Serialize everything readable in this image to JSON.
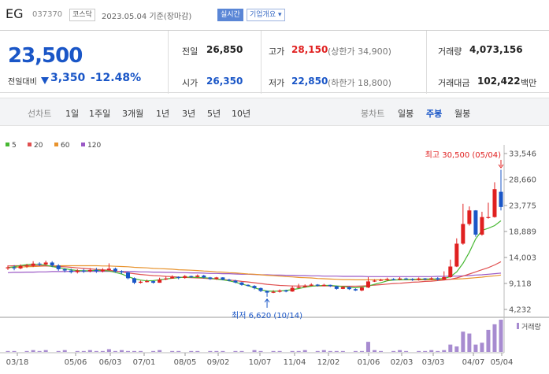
{
  "header": {
    "name": "EG",
    "code": "037370",
    "market_badge": "코스닥",
    "date_text": "2023.05.04  기준(장마감)",
    "realtime_badge": "실시간",
    "company_info_button": "기업개요 ▾"
  },
  "price": {
    "current": "23,500",
    "change_label": "전일대비",
    "change_value": "3,350",
    "change_pct": "-12.48%",
    "direction": "down"
  },
  "summary": {
    "prev_close_label": "전일",
    "prev_close": "26,850",
    "open_label": "시가",
    "open": "26,350",
    "high_label": "고가",
    "high": "28,150",
    "upper_limit": "(상한가 34,900)",
    "low_label": "저가",
    "low": "22,850",
    "lower_limit": "(하한가 18,800)",
    "volume_label": "거래량",
    "volume": "4,073,156",
    "amount_label": "거래대금",
    "amount": "102,422",
    "amount_unit": "백만"
  },
  "toolbar": {
    "line_chart_label": "선차트",
    "periods": [
      "1일",
      "1주일",
      "3개월",
      "1년",
      "3년",
      "5년",
      "10년"
    ],
    "candle_label": "봉차트",
    "candle_periods": [
      "일봉",
      "주봉",
      "월봉"
    ],
    "selected_candle": "주봉"
  },
  "colors": {
    "up": "#e02020",
    "down": "#1a56c7",
    "ma5": "#47b832",
    "ma20": "#e05050",
    "ma60": "#e8932d",
    "ma120": "#9b59c6",
    "volume": "#a78bd0"
  },
  "chart_data": {
    "type": "candlestick",
    "interval": "weekly",
    "legend": [
      {
        "name": "5",
        "color": "#47b832"
      },
      {
        "name": "20",
        "color": "#e05050"
      },
      {
        "name": "60",
        "color": "#e8932d"
      },
      {
        "name": "120",
        "color": "#9b59c6"
      }
    ],
    "y_ticks": [
      "33,546",
      "28,660",
      "23,775",
      "18,889",
      "14,003",
      "9,118",
      "4,232"
    ],
    "ylim": [
      4232,
      33546
    ],
    "x_ticks": [
      "03/18",
      "05/06",
      "06/03",
      "07/01",
      "08/05",
      "09/02",
      "10/07",
      "11/04",
      "12/02",
      "01/06",
      "02/03",
      "03/03",
      "04/07",
      "05/04"
    ],
    "high_annotation": "최고 30,500 (05/04)",
    "low_annotation": "최저 6,620 (10/14)",
    "volume_label": "거래량",
    "candles": [
      [
        11950,
        12150,
        12500,
        11650
      ],
      [
        12150,
        11950,
        12550,
        11600
      ],
      [
        11950,
        12400,
        12700,
        11800
      ],
      [
        12400,
        12500,
        12800,
        12050
      ],
      [
        12500,
        12850,
        13300,
        12200
      ],
      [
        12850,
        12700,
        13100,
        12400
      ],
      [
        12700,
        13050,
        13400,
        12500
      ],
      [
        13050,
        12500,
        13300,
        12200
      ],
      [
        12500,
        11800,
        12750,
        11500
      ],
      [
        11800,
        11550,
        12000,
        11200
      ],
      [
        11550,
        11250,
        11900,
        11000
      ],
      [
        11250,
        11550,
        11800,
        11000
      ],
      [
        11550,
        11400,
        11850,
        11100
      ],
      [
        11400,
        11650,
        12000,
        11200
      ],
      [
        11650,
        11400,
        12050,
        11100
      ],
      [
        11400,
        11650,
        12000,
        11200
      ],
      [
        11650,
        11900,
        12900,
        11500
      ],
      [
        11900,
        11400,
        12100,
        11150
      ],
      [
        11400,
        11200,
        11600,
        10900
      ],
      [
        11200,
        10100,
        11300,
        9900
      ],
      [
        10100,
        9250,
        10250,
        9000
      ],
      [
        9250,
        9450,
        9650,
        9100
      ],
      [
        9450,
        9550,
        9850,
        9300
      ],
      [
        9550,
        9250,
        9650,
        9100
      ],
      [
        9250,
        9850,
        10200,
        9250
      ],
      [
        9850,
        10050,
        10450,
        9750
      ],
      [
        10050,
        10350,
        10650,
        10000
      ],
      [
        10350,
        10150,
        10450,
        9900
      ],
      [
        10150,
        10500,
        10700,
        10000
      ],
      [
        10500,
        10350,
        10600,
        10150
      ],
      [
        10350,
        10600,
        10800,
        10200
      ],
      [
        10600,
        10250,
        10750,
        10050
      ],
      [
        10250,
        9950,
        10350,
        9800
      ],
      [
        9950,
        10250,
        10350,
        9800
      ],
      [
        10250,
        9850,
        10300,
        9700
      ],
      [
        9850,
        9650,
        10000,
        9500
      ],
      [
        9650,
        9300,
        9800,
        9150
      ],
      [
        9300,
        8850,
        9400,
        8700
      ],
      [
        8850,
        8650,
        8950,
        8550
      ],
      [
        8650,
        8250,
        8800,
        8000
      ],
      [
        8250,
        7700,
        8350,
        7500
      ],
      [
        7700,
        7400,
        7800,
        6620
      ],
      [
        7400,
        7550,
        7850,
        7300
      ],
      [
        7550,
        7800,
        8000,
        7400
      ],
      [
        7800,
        7600,
        7950,
        7450
      ],
      [
        7600,
        8300,
        8700,
        7550
      ],
      [
        8300,
        8450,
        9050,
        8200
      ],
      [
        8450,
        8700,
        8950,
        8350
      ],
      [
        8700,
        8900,
        9150,
        8600
      ],
      [
        8900,
        8700,
        9000,
        8550
      ],
      [
        8700,
        8850,
        9050,
        8600
      ],
      [
        8850,
        8600,
        8900,
        8450
      ],
      [
        8600,
        8100,
        8700,
        7950
      ],
      [
        8100,
        8450,
        8600,
        8050
      ],
      [
        8450,
        8050,
        8550,
        7900
      ],
      [
        8050,
        7800,
        8200,
        7700
      ],
      [
        7800,
        8350,
        8500,
        7650
      ],
      [
        8350,
        9500,
        10300,
        8250
      ],
      [
        9500,
        9650,
        9900,
        9400
      ],
      [
        9650,
        9800,
        10000,
        9550
      ],
      [
        9800,
        9950,
        10200,
        9600
      ],
      [
        9950,
        9850,
        10100,
        9700
      ],
      [
        9850,
        10050,
        10300,
        9700
      ],
      [
        10050,
        9950,
        10200,
        9800
      ],
      [
        9950,
        9800,
        10100,
        9600
      ],
      [
        9800,
        10050,
        10250,
        9650
      ],
      [
        10050,
        9900,
        10150,
        9700
      ],
      [
        9900,
        10100,
        10300,
        9750
      ],
      [
        10100,
        9850,
        10300,
        9650
      ],
      [
        9850,
        10300,
        11400,
        9800
      ],
      [
        10300,
        12300,
        13600,
        10200
      ],
      [
        12300,
        16600,
        17600,
        12200
      ],
      [
        16600,
        20300,
        24100,
        16400
      ],
      [
        20300,
        22850,
        23600,
        20000
      ],
      [
        22850,
        18300,
        22900,
        17900
      ],
      [
        18300,
        21600,
        22600,
        18100
      ],
      [
        21600,
        21600,
        24300,
        21300
      ],
      [
        21600,
        26850,
        28150,
        21500
      ],
      [
        26350,
        23500,
        30500,
        22850
      ]
    ],
    "ma5": [
      12100,
      12250,
      12500,
      12650,
      12750,
      12700,
      12550,
      12300,
      12100,
      11900,
      11700,
      11550,
      11500,
      11500,
      11600,
      11550,
      11450,
      11200,
      10900,
      10400,
      10000,
      9750,
      9600,
      9650,
      9800,
      9950,
      10100,
      10200,
      10300,
      10300,
      10250,
      10200,
      10100,
      9950,
      9800,
      9600,
      9350,
      9000,
      8700,
      8300,
      7950,
      7700,
      7650,
      7700,
      7800,
      7950,
      8150,
      8400,
      8600,
      8700,
      8750,
      8750,
      8650,
      8550,
      8400,
      8300,
      8450,
      8650,
      8950,
      9250,
      9600,
      9750,
      9800,
      9850,
      9900,
      9900,
      9950,
      9950,
      9950,
      10050,
      10400,
      11300,
      12900,
      15000,
      17500,
      19100,
      19500,
      20000,
      20900
    ],
    "ma20": [
      12400,
      12450,
      12450,
      12450,
      12450,
      12450,
      12400,
      12350,
      12300,
      12250,
      12150,
      12050,
      11950,
      11850,
      11750,
      11700,
      11600,
      11450,
      11300,
      11100,
      10950,
      10800,
      10700,
      10600,
      10550,
      10450,
      10400,
      10300,
      10250,
      10200,
      10150,
      10100,
      10000,
      9950,
      9850,
      9750,
      9650,
      9500,
      9400,
      9250,
      9100,
      8950,
      8850,
      8750,
      8700,
      8650,
      8650,
      8650,
      8650,
      8650,
      8650,
      8650,
      8600,
      8600,
      8600,
      8600,
      8650,
      8700,
      8800,
      8900,
      9000,
      9100,
      9150,
      9250,
      9350,
      9400,
      9500,
      9550,
      9650,
      9750,
      9900,
      10150,
      10500,
      10900,
      11300,
      11700,
      12100,
      12600,
      13200
    ],
    "ma60": [
      12100,
      12150,
      12200,
      12250,
      12300,
      12350,
      12400,
      12400,
      12450,
      12450,
      12450,
      12450,
      12450,
      12450,
      12450,
      12400,
      12400,
      12350,
      12300,
      12250,
      12150,
      12100,
      12050,
      11950,
      11900,
      11850,
      11800,
      11700,
      11650,
      11600,
      11550,
      11450,
      11400,
      11300,
      11250,
      11150,
      11100,
      11000,
      10900,
      10850,
      10750,
      10650,
      10600,
      10500,
      10400,
      10350,
      10250,
      10200,
      10150,
      10050,
      10000,
      9950,
      9900,
      9850,
      9850,
      9800,
      9800,
      9800,
      9800,
      9800,
      9800,
      9800,
      9800,
      9800,
      9800,
      9800,
      9800,
      9800,
      9850,
      9850,
      9900,
      9950,
      10000,
      10100,
      10200,
      10300,
      10450,
      10550,
      10700
    ],
    "ma120": [
      11150,
      11200,
      11200,
      11250,
      11250,
      11300,
      11300,
      11350,
      11350,
      11350,
      11400,
      11400,
      11400,
      11400,
      11400,
      11400,
      11400,
      11400,
      11350,
      11350,
      11350,
      11300,
      11300,
      11250,
      11250,
      11200,
      11200,
      11150,
      11150,
      11100,
      11100,
      11050,
      11000,
      11000,
      10950,
      10950,
      10900,
      10850,
      10850,
      10800,
      10750,
      10750,
      10700,
      10700,
      10650,
      10650,
      10600,
      10600,
      10550,
      10550,
      10500,
      10500,
      10500,
      10450,
      10450,
      10450,
      10450,
      10400,
      10400,
      10400,
      10400,
      10400,
      10400,
      10400,
      10400,
      10400,
      10400,
      10400,
      10450,
      10450,
      10500,
      10500,
      10550,
      10600,
      10700,
      10750,
      10850,
      10950,
      11050
    ],
    "volume": [
      1,
      1,
      0,
      1,
      2,
      1,
      2,
      0,
      1,
      2,
      0,
      1,
      1,
      2,
      1,
      1,
      3,
      1,
      2,
      1,
      1,
      1,
      0,
      1,
      2,
      0,
      1,
      1,
      0,
      1,
      1,
      0,
      1,
      1,
      1,
      0,
      1,
      1,
      0,
      2,
      1,
      0,
      1,
      1,
      0,
      1,
      1,
      2,
      0,
      1,
      2,
      1,
      1,
      1,
      0,
      1,
      1,
      11,
      2,
      1,
      0,
      1,
      2,
      1,
      0,
      1,
      1,
      2,
      1,
      2,
      8,
      6,
      22,
      20,
      8,
      10,
      24,
      30,
      35
    ]
  }
}
